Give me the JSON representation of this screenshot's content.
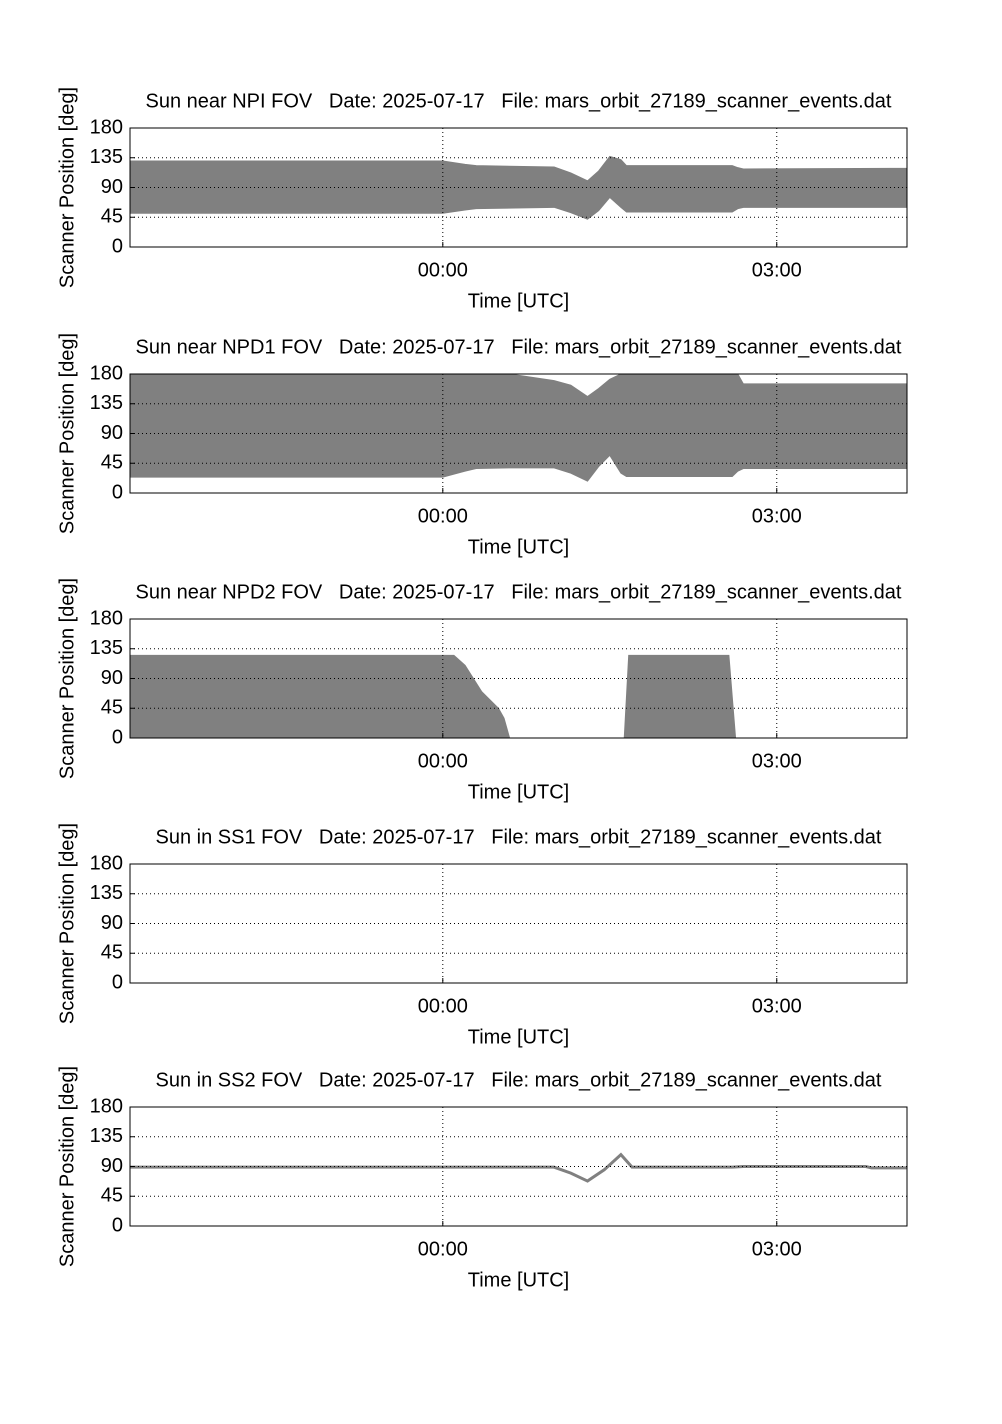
{
  "chart_data": [
    {
      "type": "band",
      "title": "Sun near NPI FOV   Date: 2025-07-17   File: mars_orbit_27189_scanner_events.dat",
      "xlabel": "Time [UTC]",
      "ylabel": "Scanner Position [deg]",
      "color": "#808080",
      "grid": true,
      "xlim": [
        -2.81,
        4.17
      ],
      "xticks": [
        {
          "value": 0,
          "label": "00:00"
        },
        {
          "value": 3,
          "label": "03:00"
        }
      ],
      "ylim": [
        0,
        180
      ],
      "yticks": [
        0,
        45,
        90,
        135,
        180
      ],
      "x": [
        -2.81,
        0.0,
        0.2,
        0.3,
        1.0,
        1.15,
        1.3,
        1.4,
        1.5,
        1.6,
        1.65,
        2.6,
        2.65,
        2.7,
        4.17
      ],
      "upper": [
        130,
        130,
        125,
        123,
        121,
        112,
        100,
        115,
        137,
        132,
        123,
        123,
        120,
        118,
        119
      ],
      "lower": [
        51,
        51,
        56,
        58,
        60,
        52,
        42,
        55,
        75,
        60,
        53,
        53,
        58,
        60,
        60
      ]
    },
    {
      "type": "band",
      "title": "Sun near NPD1 FOV   Date: 2025-07-17   File: mars_orbit_27189_scanner_events.dat",
      "xlabel": "Time [UTC]",
      "ylabel": "Scanner Position [deg]",
      "color": "#808080",
      "grid": true,
      "xlim": [
        -2.81,
        4.17
      ],
      "xticks": [
        {
          "value": 0,
          "label": "00:00"
        },
        {
          "value": 3,
          "label": "03:00"
        }
      ],
      "ylim": [
        0,
        180
      ],
      "yticks": [
        0,
        45,
        90,
        135,
        180
      ],
      "x": [
        -2.81,
        0.0,
        0.2,
        0.3,
        0.6,
        1.0,
        1.15,
        1.3,
        1.4,
        1.5,
        1.6,
        1.65,
        2.6,
        2.65,
        2.7,
        4.17
      ],
      "upper": [
        180,
        180,
        180,
        180,
        180,
        170,
        163,
        146,
        158,
        172,
        180,
        180,
        180,
        180,
        165,
        165
      ],
      "lower": [
        24,
        24,
        33,
        37,
        38,
        38,
        30,
        18,
        40,
        57,
        30,
        25,
        25,
        33,
        37,
        37
      ]
    },
    {
      "type": "band",
      "title": "Sun near NPD2 FOV   Date: 2025-07-17   File: mars_orbit_27189_scanner_events.dat",
      "xlabel": "Time [UTC]",
      "ylabel": "Scanner Position [deg]",
      "color": "#808080",
      "grid": true,
      "xlim": [
        -2.81,
        4.17
      ],
      "xticks": [
        {
          "value": 0,
          "label": "00:00"
        },
        {
          "value": 3,
          "label": "03:00"
        }
      ],
      "ylim": [
        0,
        180
      ],
      "yticks": [
        0,
        45,
        90,
        135,
        180
      ],
      "x": [
        -2.81,
        0.1,
        0.2,
        0.35,
        0.5,
        0.55,
        0.6,
        1.63,
        1.67,
        2.57,
        2.63,
        4.17
      ],
      "upper": [
        125,
        125,
        110,
        70,
        45,
        30,
        0,
        0,
        125,
        125,
        0,
        0
      ],
      "lower": [
        0,
        0,
        0,
        0,
        0,
        0,
        0,
        0,
        0,
        0,
        0,
        0
      ]
    },
    {
      "type": "line",
      "title": "Sun in SS1 FOV   Date: 2025-07-17   File: mars_orbit_27189_scanner_events.dat",
      "xlabel": "Time [UTC]",
      "ylabel": "Scanner Position [deg]",
      "color": "#808080",
      "grid": true,
      "xlim": [
        -2.81,
        4.17
      ],
      "xticks": [
        {
          "value": 0,
          "label": "00:00"
        },
        {
          "value": 3,
          "label": "03:00"
        }
      ],
      "ylim": [
        0,
        180
      ],
      "yticks": [
        0,
        45,
        90,
        135,
        180
      ],
      "x": [],
      "values": []
    },
    {
      "type": "line",
      "title": "Sun in SS2 FOV   Date: 2025-07-17   File: mars_orbit_27189_scanner_events.dat",
      "xlabel": "Time [UTC]",
      "ylabel": "Scanner Position [deg]",
      "color": "#808080",
      "grid": true,
      "xlim": [
        -2.81,
        4.17
      ],
      "xticks": [
        {
          "value": 0,
          "label": "00:00"
        },
        {
          "value": 3,
          "label": "03:00"
        }
      ],
      "ylim": [
        0,
        180
      ],
      "yticks": [
        0,
        45,
        90,
        135,
        180
      ],
      "x": [
        -2.81,
        1.0,
        1.15,
        1.3,
        1.45,
        1.6,
        1.7,
        2.6,
        2.7,
        3.8,
        3.85,
        4.17
      ],
      "values": [
        89,
        89,
        80,
        68,
        85,
        108,
        89,
        89,
        90,
        90,
        88,
        88
      ]
    }
  ]
}
